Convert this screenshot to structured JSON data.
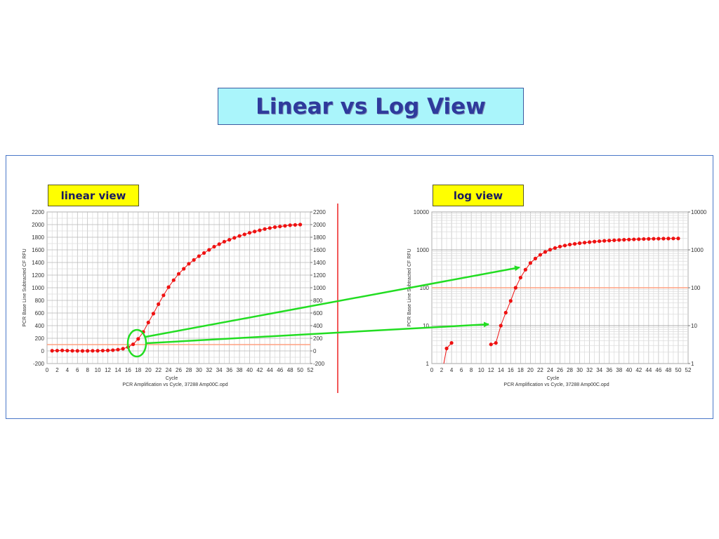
{
  "title": "Linear vs Log View",
  "labels": {
    "linear": "linear view",
    "log": "log view"
  },
  "colors": {
    "data": "#ee1111",
    "threshold": "#ffa080",
    "arrow": "#22dd22",
    "title_bg": "#aaf5fb",
    "label_bg": "#ffff00"
  },
  "chart_data": [
    {
      "type": "scatter",
      "name": "linear view",
      "xlabel": "Cycle",
      "ylabel": "PCR Base Line Subtracted CF RFU",
      "footer": "PCR Amplification vs Cycle, 37288 Amp00C.opd",
      "xlim": [
        0,
        52
      ],
      "ylim": [
        -200,
        2200
      ],
      "yscale": "linear",
      "grid": true,
      "x_ticks": [
        "0",
        "2",
        "4",
        "6",
        "8",
        "10",
        "12",
        "14",
        "16",
        "18",
        "20",
        "22",
        "24",
        "26",
        "28",
        "30",
        "32",
        "34",
        "36",
        "38",
        "40",
        "42",
        "44",
        "46",
        "48",
        "50",
        "52"
      ],
      "y_ticks": [
        "2200",
        "2000",
        "1800",
        "1600",
        "1400",
        "1200",
        "1000",
        "800",
        "600",
        "400",
        "200",
        "0",
        "-200"
      ],
      "threshold": 100,
      "x": [
        1,
        2,
        3,
        4,
        5,
        6,
        7,
        8,
        9,
        10,
        11,
        12,
        13,
        14,
        15,
        16,
        17,
        18,
        19,
        20,
        21,
        22,
        23,
        24,
        25,
        26,
        27,
        28,
        29,
        30,
        31,
        32,
        33,
        34,
        35,
        36,
        37,
        38,
        39,
        40,
        41,
        42,
        43,
        44,
        45,
        46,
        47,
        48,
        49,
        50
      ],
      "values": [
        3,
        5,
        8,
        5,
        2,
        1,
        0,
        1,
        2,
        3,
        5,
        8,
        12,
        20,
        35,
        60,
        105,
        190,
        300,
        450,
        590,
        740,
        880,
        1010,
        1120,
        1220,
        1300,
        1380,
        1440,
        1500,
        1550,
        1600,
        1650,
        1690,
        1730,
        1760,
        1790,
        1820,
        1845,
        1870,
        1890,
        1910,
        1930,
        1945,
        1960,
        1970,
        1980,
        1990,
        1995,
        2000
      ]
    },
    {
      "type": "scatter",
      "name": "log view",
      "xlabel": "Cycle",
      "ylabel": "PCR Base Line Subtracted CF RFU",
      "footer": "PCR Amplification vs Cycle, 37288 Amp00C.opd",
      "xlim": [
        0,
        52
      ],
      "ylim": [
        1,
        10000
      ],
      "yscale": "log",
      "grid": true,
      "x_ticks": [
        "0",
        "2",
        "4",
        "6",
        "8",
        "10",
        "12",
        "14",
        "16",
        "18",
        "20",
        "22",
        "24",
        "26",
        "28",
        "30",
        "32",
        "34",
        "36",
        "38",
        "40",
        "42",
        "44",
        "46",
        "48",
        "50",
        "52"
      ],
      "y_ticks": [
        "10000",
        "1000",
        "100",
        "10",
        "1"
      ],
      "threshold": 100,
      "x": [
        3,
        4,
        12,
        13,
        14,
        15,
        16,
        17,
        18,
        19,
        20,
        21,
        22,
        23,
        24,
        25,
        26,
        27,
        28,
        29,
        30,
        31,
        32,
        33,
        34,
        35,
        36,
        37,
        38,
        39,
        40,
        41,
        42,
        43,
        44,
        45,
        46,
        47,
        48,
        49,
        50
      ],
      "values": [
        2.5,
        3.5,
        3.2,
        3.5,
        10,
        22,
        45,
        100,
        185,
        300,
        450,
        590,
        740,
        880,
        1010,
        1120,
        1220,
        1300,
        1380,
        1440,
        1500,
        1550,
        1600,
        1650,
        1690,
        1730,
        1760,
        1790,
        1820,
        1845,
        1870,
        1890,
        1910,
        1930,
        1945,
        1960,
        1970,
        1980,
        1990,
        1995,
        2000
      ]
    }
  ]
}
